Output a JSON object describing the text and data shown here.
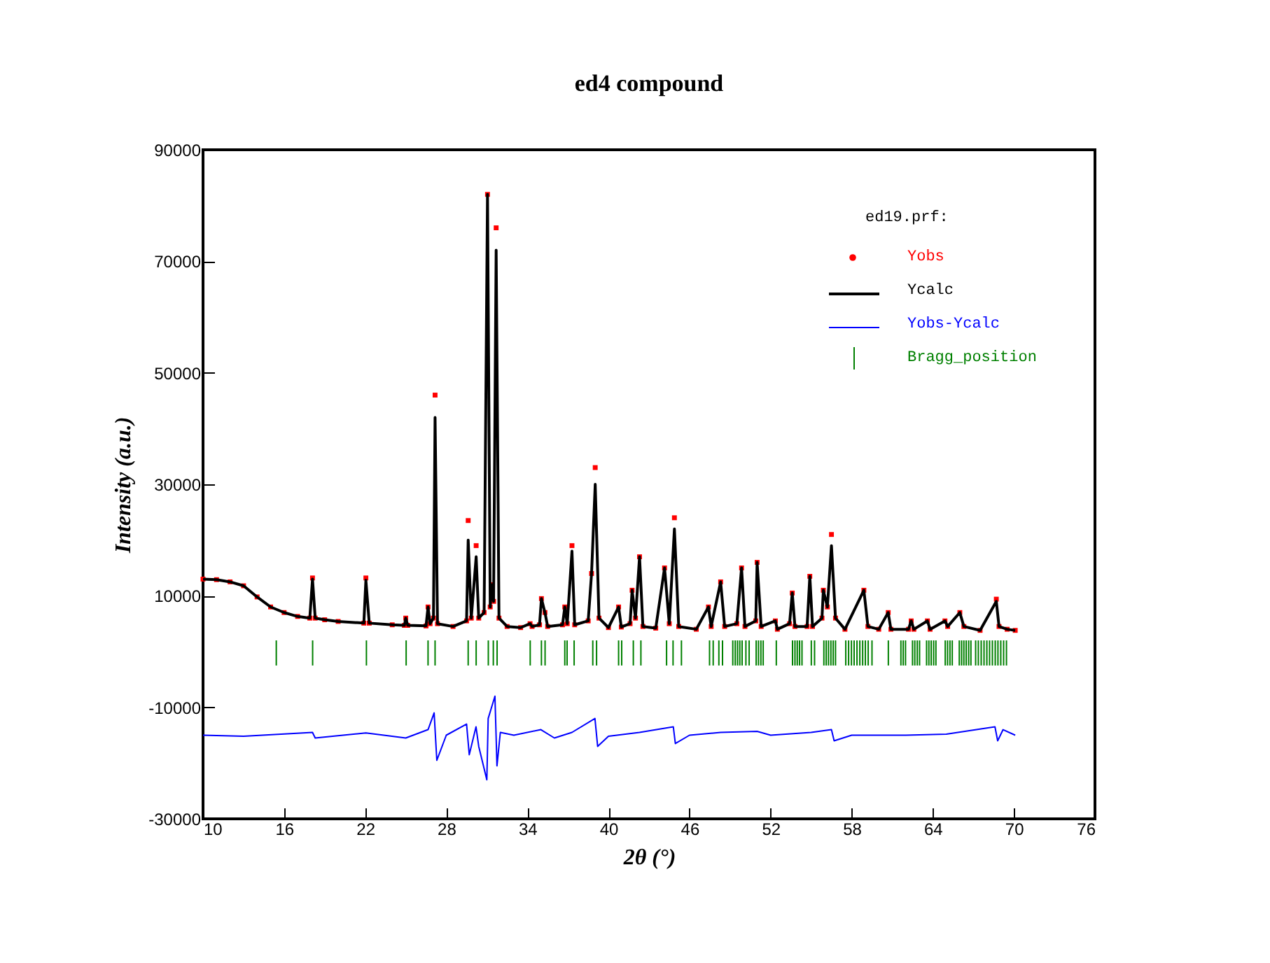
{
  "chart_data": {
    "type": "line",
    "title": "ed4 compound",
    "xlabel": "2θ (°)",
    "ylabel": "Intensity (a.u.)",
    "legend_title": "ed19.prf:",
    "legend": "top right",
    "grid": false,
    "xlim": [
      10,
      76
    ],
    "xticks": [
      10,
      16,
      22,
      28,
      34,
      40,
      46,
      52,
      58,
      64,
      70,
      76
    ],
    "ylim": [
      -30000,
      90000
    ],
    "yticks": [
      {
        "value": -30000,
        "label": "-30000"
      },
      {
        "value": -10000,
        "label": "-10000"
      },
      {
        "value": 10000,
        "label": "10000"
      },
      {
        "value": 30000,
        "label": "30000"
      },
      {
        "value": 50000,
        "label": "50000"
      },
      {
        "value": 70000,
        "label": "70000"
      },
      {
        "value": 90000,
        "label": "90000"
      }
    ],
    "series": [
      {
        "name": "Yobs",
        "type": "scatter",
        "marker": "square",
        "color": "#ff0000",
        "x": [
          10,
          11,
          12,
          13,
          14,
          15,
          16,
          17,
          17.9,
          18.1,
          18.3,
          19,
          20,
          21.9,
          22.05,
          22.3,
          24,
          24.9,
          25.0,
          25.15,
          26.5,
          26.65,
          26.8,
          27.05,
          27.17,
          27.35,
          28.5,
          29.5,
          29.62,
          29.85,
          30.21,
          30.4,
          30.8,
          31.05,
          31.25,
          31.35,
          31.5,
          31.69,
          31.9,
          32.5,
          33.5,
          34.2,
          34.35,
          34.9,
          35.04,
          35.3,
          35.5,
          36.6,
          36.77,
          36.95,
          37.3,
          37.5,
          38.5,
          38.75,
          39.02,
          39.3,
          40.0,
          40.75,
          40.95,
          41.6,
          41.75,
          42.0,
          42.3,
          42.55,
          43.5,
          44.15,
          44.5,
          44.88,
          45.2,
          46.5,
          47.4,
          47.6,
          48.3,
          48.6,
          49.5,
          49.85,
          50.1,
          50.9,
          51.0,
          51.3,
          52.35,
          52.5,
          53.4,
          53.6,
          53.8,
          54.7,
          54.9,
          55.1,
          55.8,
          55.9,
          56.2,
          56.5,
          56.8,
          57.5,
          58.9,
          59.2,
          60.0,
          60.7,
          60.9,
          62.2,
          62.4,
          62.6,
          63.6,
          63.8,
          64.9,
          65.1,
          66.0,
          66.3,
          67.5,
          68.7,
          68.9,
          69.5,
          70.1
        ],
        "values": [
          13000,
          12900,
          12500,
          11800,
          9800,
          8000,
          7000,
          6300,
          6000,
          13200,
          6000,
          5700,
          5400,
          5100,
          13200,
          5100,
          4800,
          4700,
          6000,
          4700,
          4600,
          8000,
          5000,
          6000,
          46000,
          5000,
          4500,
          5500,
          23500,
          6000,
          19000,
          6000,
          7000,
          82000,
          8000,
          12000,
          9000,
          76000,
          6000,
          4500,
          4300,
          5000,
          4500,
          4800,
          9500,
          7000,
          4500,
          4800,
          8000,
          5000,
          19000,
          4800,
          5500,
          14000,
          33000,
          6000,
          4300,
          8000,
          4400,
          5000,
          11000,
          6000,
          17000,
          4500,
          4200,
          15000,
          5000,
          24000,
          4500,
          4000,
          8000,
          4500,
          12500,
          4500,
          5000,
          15000,
          4500,
          5500,
          16000,
          4500,
          5500,
          4000,
          5000,
          10500,
          4500,
          4500,
          13500,
          4500,
          6000,
          11000,
          8000,
          21000,
          6000,
          4000,
          11000,
          4500,
          4000,
          7000,
          4000,
          4000,
          5500,
          4000,
          5500,
          4000,
          5500,
          4500,
          7000,
          4500,
          3800,
          9400,
          4500,
          4000,
          3800
        ]
      },
      {
        "name": "Ycalc",
        "color": "#000000",
        "x": [
          10,
          11,
          12,
          13,
          14,
          15,
          16,
          17,
          17.9,
          18.1,
          18.3,
          19,
          20,
          21.9,
          22.05,
          22.3,
          24,
          24.9,
          25.0,
          25.15,
          26.5,
          26.65,
          26.8,
          27.05,
          27.17,
          27.35,
          28.5,
          29.5,
          29.62,
          29.85,
          30.21,
          30.4,
          30.8,
          31.05,
          31.25,
          31.35,
          31.5,
          31.69,
          31.9,
          32.5,
          33.5,
          34.2,
          34.35,
          34.9,
          35.04,
          35.3,
          35.5,
          36.6,
          36.77,
          36.95,
          37.3,
          37.5,
          38.5,
          38.75,
          39.02,
          39.3,
          40.0,
          40.75,
          40.95,
          41.6,
          41.75,
          42.0,
          42.3,
          42.55,
          43.5,
          44.15,
          44.5,
          44.88,
          45.2,
          46.5,
          47.4,
          47.6,
          48.3,
          48.6,
          49.5,
          49.85,
          50.1,
          50.9,
          51.0,
          51.3,
          52.35,
          52.5,
          53.4,
          53.6,
          53.8,
          54.7,
          54.9,
          55.1,
          55.8,
          55.9,
          56.2,
          56.5,
          56.8,
          57.5,
          58.9,
          59.2,
          60.0,
          60.7,
          60.9,
          62.2,
          62.4,
          62.6,
          63.6,
          63.8,
          64.9,
          65.1,
          66.0,
          66.3,
          67.5,
          68.7,
          68.9,
          69.5,
          70.1
        ],
        "values": [
          13000,
          12900,
          12500,
          11800,
          9800,
          8000,
          7000,
          6300,
          6000,
          13000,
          6000,
          5700,
          5400,
          5100,
          12800,
          5100,
          4800,
          4700,
          6000,
          4700,
          4600,
          8000,
          5000,
          6000,
          42000,
          5000,
          4500,
          5500,
          20000,
          6000,
          17000,
          6000,
          7000,
          82000,
          8000,
          12000,
          9000,
          72000,
          6000,
          4500,
          4300,
          5000,
          4500,
          4800,
          9500,
          7000,
          4500,
          4800,
          8000,
          5000,
          18000,
          4800,
          5500,
          14000,
          30000,
          6000,
          4300,
          8000,
          4400,
          5000,
          11000,
          6000,
          17000,
          4500,
          4200,
          15000,
          5000,
          22000,
          4500,
          4000,
          8000,
          4500,
          12500,
          4500,
          5000,
          15000,
          4500,
          5500,
          16000,
          4500,
          5500,
          4000,
          5000,
          10500,
          4500,
          4500,
          13500,
          4500,
          6000,
          11000,
          8000,
          19000,
          6000,
          4000,
          11000,
          4500,
          4000,
          7000,
          4000,
          4000,
          5500,
          4000,
          5500,
          4000,
          5500,
          4500,
          7000,
          4500,
          3800,
          9000,
          4500,
          4000,
          3800
        ]
      },
      {
        "name": "Yobs-Ycalc",
        "type": "line",
        "color": "#0000ff",
        "x": [
          10,
          13,
          18.1,
          18.3,
          22.05,
          25,
          26.65,
          27.1,
          27.3,
          28,
          29.5,
          29.7,
          30.2,
          30.4,
          31.0,
          31.1,
          31.6,
          31.75,
          32,
          33,
          35,
          36,
          37.3,
          39.0,
          39.2,
          40,
          42.3,
          44.8,
          44.95,
          46,
          48.3,
          51.0,
          52,
          55,
          56.5,
          56.7,
          58,
          62,
          65,
          68.6,
          68.8,
          69.2,
          70.1
        ],
        "values": [
          -15000,
          -15200,
          -14500,
          -15500,
          -14600,
          -15500,
          -14000,
          -11000,
          -19500,
          -15000,
          -13000,
          -18500,
          -13500,
          -17000,
          -23000,
          -12000,
          -8000,
          -20500,
          -14500,
          -15000,
          -14000,
          -15500,
          -14500,
          -12000,
          -17000,
          -15200,
          -14500,
          -13500,
          -16500,
          -15000,
          -14500,
          -14300,
          -15000,
          -14500,
          -14000,
          -16000,
          -15000,
          -15000,
          -14800,
          -13500,
          -16000,
          -14000,
          -15000
        ]
      },
      {
        "name": "Bragg_position",
        "type": "bar",
        "color": "#008000",
        "x": [
          15.42,
          18.11,
          22.09,
          25.03,
          26.65,
          27.17,
          29.62,
          30.21,
          31.11,
          31.48,
          31.76,
          34.21,
          35.04,
          35.31,
          36.77,
          36.94,
          37.46,
          38.84,
          39.12,
          40.75,
          40.98,
          41.84,
          42.4,
          44.3,
          44.78,
          45.4,
          47.48,
          47.75,
          48.17,
          48.44,
          49.2,
          49.38,
          49.55,
          49.72,
          49.89,
          50.17,
          50.41,
          50.93,
          51.1,
          51.28,
          51.45,
          52.42,
          53.62,
          53.8,
          53.97,
          54.14,
          54.32,
          55.01,
          55.25,
          55.94,
          56.11,
          56.28,
          56.46,
          56.63,
          56.8,
          57.56,
          57.77,
          57.98,
          58.18,
          58.39,
          58.6,
          58.81,
          59.01,
          59.22,
          59.5,
          60.71,
          61.64,
          61.81,
          61.98,
          62.5,
          62.67,
          62.85,
          63.02,
          63.54,
          63.71,
          63.88,
          64.06,
          64.23,
          64.92,
          65.09,
          65.27,
          65.44,
          65.96,
          66.13,
          66.3,
          66.47,
          66.65,
          66.82,
          67.17,
          67.37,
          67.58,
          67.79,
          68.0,
          68.2,
          68.41,
          68.62,
          68.82,
          69.03,
          69.24,
          69.45
        ],
        "base": [
          -2500,
          -2500,
          -2500,
          -2500,
          -2500,
          -2500,
          -2500,
          -2500,
          -2500,
          -2500,
          -2500,
          -2500,
          -2500,
          -2500,
          -2500,
          -2500,
          -2500,
          -2500,
          -2500,
          -2500,
          -2500,
          -2500,
          -2500,
          -2500,
          -2500,
          -2500,
          -2500,
          -2500,
          -2500,
          -2500,
          -2500,
          -2500,
          -2500,
          -2500,
          -2500,
          -2500,
          -2500,
          -2500,
          -2500,
          -2500,
          -2500,
          -2500,
          -2500,
          -2500,
          -2500,
          -2500,
          -2500,
          -2500,
          -2500,
          -2500,
          -2500,
          -2500,
          -2500,
          -2500,
          -2500,
          -2500,
          -2500,
          -2500,
          -2500,
          -2500,
          -2500,
          -2500,
          -2500,
          -2500,
          -2500,
          -2500,
          -2500,
          -2500,
          -2500,
          -2500,
          -2500,
          -2500,
          -2500,
          -2500,
          -2500,
          -2500,
          -2500,
          -2500,
          -2500,
          -2500,
          -2500,
          -2500,
          -2500,
          -2500,
          -2500,
          -2500,
          -2500,
          -2500,
          -2500,
          -2500,
          -2500,
          -2500,
          -2500,
          -2500,
          -2500,
          -2500,
          -2500,
          -2500,
          -2500,
          -2500
        ],
        "values": [
          4500,
          4500,
          4500,
          4500,
          4500,
          4500,
          4500,
          4500,
          4500,
          4500,
          4500,
          4500,
          4500,
          4500,
          4500,
          4500,
          4500,
          4500,
          4500,
          4500,
          4500,
          4500,
          4500,
          4500,
          4500,
          4500,
          4500,
          4500,
          4500,
          4500,
          4500,
          4500,
          4500,
          4500,
          4500,
          4500,
          4500,
          4500,
          4500,
          4500,
          4500,
          4500,
          4500,
          4500,
          4500,
          4500,
          4500,
          4500,
          4500,
          4500,
          4500,
          4500,
          4500,
          4500,
          4500,
          4500,
          4500,
          4500,
          4500,
          4500,
          4500,
          4500,
          4500,
          4500,
          4500,
          4500,
          4500,
          4500,
          4500,
          4500,
          4500,
          4500,
          4500,
          4500,
          4500,
          4500,
          4500,
          4500,
          4500,
          4500,
          4500,
          4500,
          4500,
          4500,
          4500,
          4500,
          4500,
          4500,
          4500,
          4500,
          4500,
          4500,
          4500,
          4500,
          4500,
          4500,
          4500,
          4500,
          4500,
          4500
        ]
      }
    ]
  }
}
